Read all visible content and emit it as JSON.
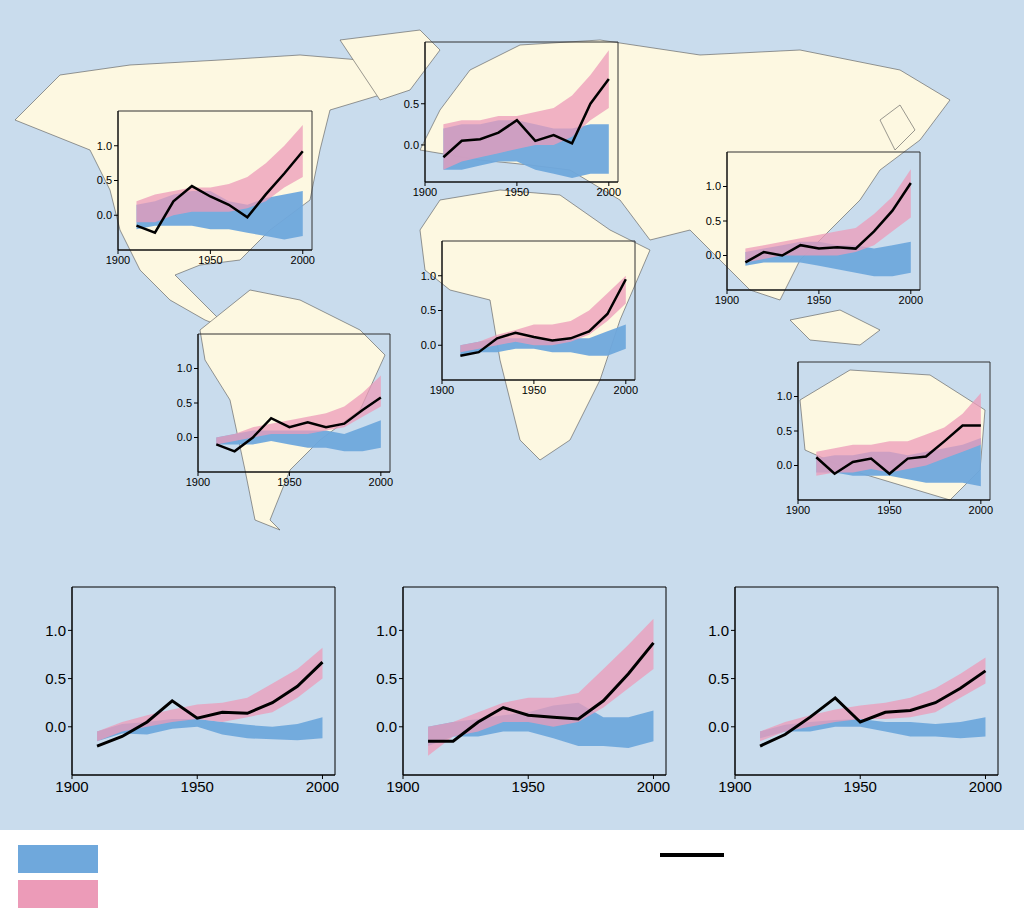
{
  "chart_data": [
    {
      "type": "line",
      "x": [
        1910,
        1920,
        1930,
        1940,
        1950,
        1960,
        1970,
        1980,
        1990,
        2000
      ],
      "xlim": [
        1900,
        2005
      ],
      "xticks": [
        1900,
        1950,
        2000
      ],
      "ylim": [
        -0.5,
        1.5
      ],
      "yticks": [
        {
          "value": 0,
          "label": "0.0"
        },
        {
          "value": 0.5,
          "label": "0.5"
        },
        {
          "value": 1,
          "label": "1.0"
        }
      ],
      "series": [
        {
          "type": "band",
          "color": "#6fa8dc",
          "low": [
            -0.2,
            -0.15,
            -0.15,
            -0.15,
            -0.2,
            -0.2,
            -0.25,
            -0.3,
            -0.35,
            -0.3
          ],
          "high": [
            0.15,
            0.2,
            0.3,
            0.35,
            0.35,
            0.2,
            0.15,
            0.25,
            0.3,
            0.35
          ]
        },
        {
          "type": "band",
          "color": "#ec9bb8",
          "low": [
            -0.1,
            -0.1,
            0.0,
            0.05,
            0.05,
            0.05,
            0.1,
            0.2,
            0.4,
            0.55
          ],
          "high": [
            0.2,
            0.3,
            0.35,
            0.4,
            0.4,
            0.45,
            0.55,
            0.75,
            1.0,
            1.3
          ]
        },
        {
          "type": "line",
          "color": "#000000",
          "values": [
            -0.15,
            -0.25,
            0.2,
            0.42,
            0.27,
            0.15,
            -0.03,
            0.3,
            0.6,
            0.92
          ]
        }
      ]
    },
    {
      "type": "line",
      "x": [
        1910,
        1920,
        1930,
        1940,
        1950,
        1960,
        1970,
        1980,
        1990,
        2000
      ],
      "xlim": [
        1900,
        2005
      ],
      "xticks": [
        1900,
        1950,
        2000
      ],
      "ylim": [
        -0.45,
        1.25
      ],
      "yticks": [
        {
          "value": 0,
          "label": "0.0"
        },
        {
          "value": 0.5,
          "label": "0.5"
        }
      ],
      "series": [
        {
          "type": "band",
          "color": "#6fa8dc",
          "low": [
            -0.3,
            -0.3,
            -0.25,
            -0.2,
            -0.2,
            -0.3,
            -0.35,
            -0.4,
            -0.35,
            -0.35
          ],
          "high": [
            0.2,
            0.25,
            0.25,
            0.3,
            0.3,
            0.25,
            0.2,
            0.2,
            0.25,
            0.25
          ]
        },
        {
          "type": "band",
          "color": "#ec9bb8",
          "low": [
            -0.3,
            -0.2,
            -0.15,
            -0.1,
            -0.05,
            0.0,
            0.0,
            0.1,
            0.3,
            0.45
          ],
          "high": [
            0.25,
            0.3,
            0.3,
            0.35,
            0.35,
            0.4,
            0.45,
            0.6,
            0.85,
            1.15
          ]
        },
        {
          "type": "line",
          "color": "#000000",
          "values": [
            -0.15,
            0.05,
            0.07,
            0.15,
            0.3,
            0.05,
            0.12,
            0.02,
            0.5,
            0.8
          ]
        }
      ]
    },
    {
      "type": "line",
      "x": [
        1910,
        1920,
        1930,
        1940,
        1950,
        1960,
        1970,
        1980,
        1990,
        2000
      ],
      "xlim": [
        1900,
        2005
      ],
      "xticks": [
        1900,
        1950,
        2000
      ],
      "ylim": [
        -0.5,
        1.5
      ],
      "yticks": [
        {
          "value": 0,
          "label": "0.0"
        },
        {
          "value": 0.5,
          "label": "0.5"
        },
        {
          "value": 1,
          "label": "1.0"
        }
      ],
      "series": [
        {
          "type": "band",
          "color": "#6fa8dc",
          "low": [
            -0.15,
            -0.1,
            -0.1,
            -0.1,
            -0.15,
            -0.2,
            -0.25,
            -0.3,
            -0.3,
            -0.25
          ],
          "high": [
            0.05,
            0.1,
            0.15,
            0.2,
            0.2,
            0.15,
            0.15,
            0.1,
            0.15,
            0.2
          ]
        },
        {
          "type": "band",
          "color": "#ec9bb8",
          "low": [
            -0.1,
            -0.05,
            0.0,
            0.0,
            0.0,
            0.0,
            0.05,
            0.15,
            0.35,
            0.55
          ],
          "high": [
            0.1,
            0.15,
            0.2,
            0.25,
            0.3,
            0.35,
            0.4,
            0.6,
            0.85,
            1.25
          ]
        },
        {
          "type": "line",
          "color": "#000000",
          "values": [
            -0.1,
            0.05,
            0.0,
            0.15,
            0.1,
            0.12,
            0.1,
            0.35,
            0.65,
            1.05
          ]
        }
      ]
    },
    {
      "type": "line",
      "x": [
        1910,
        1920,
        1930,
        1940,
        1950,
        1960,
        1970,
        1980,
        1990,
        2000
      ],
      "xlim": [
        1900,
        2005
      ],
      "xticks": [
        1900,
        1950,
        2000
      ],
      "ylim": [
        -0.5,
        1.5
      ],
      "yticks": [
        {
          "value": 0,
          "label": "0.0"
        },
        {
          "value": 0.5,
          "label": "0.5"
        },
        {
          "value": 1,
          "label": "1.0"
        }
      ],
      "series": [
        {
          "type": "band",
          "color": "#6fa8dc",
          "low": [
            -0.15,
            -0.1,
            -0.1,
            -0.05,
            -0.05,
            -0.1,
            -0.1,
            -0.15,
            -0.15,
            -0.05
          ],
          "high": [
            0.0,
            0.05,
            0.1,
            0.1,
            0.1,
            0.05,
            0.1,
            0.1,
            0.2,
            0.3
          ]
        },
        {
          "type": "band",
          "color": "#ec9bb8",
          "low": [
            -0.1,
            -0.05,
            0.0,
            0.05,
            0.0,
            0.0,
            0.05,
            0.15,
            0.35,
            0.6
          ],
          "high": [
            0.0,
            0.05,
            0.15,
            0.22,
            0.3,
            0.3,
            0.35,
            0.5,
            0.75,
            1.0
          ]
        },
        {
          "type": "line",
          "color": "#000000",
          "values": [
            -0.15,
            -0.1,
            0.1,
            0.18,
            0.12,
            0.07,
            0.1,
            0.2,
            0.45,
            0.95
          ]
        }
      ]
    },
    {
      "type": "line",
      "x": [
        1910,
        1920,
        1930,
        1940,
        1950,
        1960,
        1970,
        1980,
        1990,
        2000
      ],
      "xlim": [
        1900,
        2005
      ],
      "xticks": [
        1900,
        1950,
        2000
      ],
      "ylim": [
        -0.5,
        1.5
      ],
      "yticks": [
        {
          "value": 0,
          "label": "0.0"
        },
        {
          "value": 0.5,
          "label": "0.5"
        },
        {
          "value": 1,
          "label": "1.0"
        }
      ],
      "series": [
        {
          "type": "band",
          "color": "#6fa8dc",
          "low": [
            -0.1,
            -0.1,
            -0.1,
            -0.05,
            -0.1,
            -0.15,
            -0.15,
            -0.2,
            -0.2,
            -0.15
          ],
          "high": [
            0.0,
            0.05,
            0.1,
            0.1,
            0.1,
            0.1,
            0.1,
            0.05,
            0.15,
            0.25
          ]
        },
        {
          "type": "band",
          "color": "#ec9bb8",
          "low": [
            -0.1,
            -0.05,
            0.0,
            0.05,
            0.05,
            0.05,
            0.1,
            0.15,
            0.3,
            0.45
          ],
          "high": [
            0.0,
            0.05,
            0.15,
            0.2,
            0.25,
            0.3,
            0.35,
            0.45,
            0.65,
            0.9
          ]
        },
        {
          "type": "line",
          "color": "#000000",
          "values": [
            -0.1,
            -0.2,
            0.0,
            0.28,
            0.15,
            0.22,
            0.15,
            0.2,
            0.4,
            0.58
          ]
        }
      ]
    },
    {
      "type": "line",
      "x": [
        1910,
        1920,
        1930,
        1940,
        1950,
        1960,
        1970,
        1980,
        1990,
        2000
      ],
      "xlim": [
        1900,
        2005
      ],
      "xticks": [
        1900,
        1950,
        2000
      ],
      "ylim": [
        -0.5,
        1.5
      ],
      "yticks": [
        {
          "value": 0,
          "label": "0.0"
        },
        {
          "value": 0.5,
          "label": "0.5"
        },
        {
          "value": 1,
          "label": "1.0"
        }
      ],
      "series": [
        {
          "type": "band",
          "color": "#6fa8dc",
          "low": [
            -0.1,
            -0.1,
            -0.15,
            -0.15,
            -0.15,
            -0.2,
            -0.25,
            -0.25,
            -0.25,
            -0.3
          ],
          "high": [
            0.1,
            0.15,
            0.15,
            0.2,
            0.2,
            0.15,
            0.2,
            0.25,
            0.3,
            0.4
          ]
        },
        {
          "type": "band",
          "color": "#ec9bb8",
          "low": [
            -0.15,
            -0.1,
            -0.1,
            -0.05,
            -0.1,
            -0.05,
            0.0,
            0.1,
            0.2,
            0.3
          ],
          "high": [
            0.2,
            0.25,
            0.3,
            0.3,
            0.35,
            0.35,
            0.45,
            0.55,
            0.75,
            1.05
          ]
        },
        {
          "type": "line",
          "color": "#000000",
          "values": [
            0.12,
            -0.12,
            0.05,
            0.1,
            -0.12,
            0.1,
            0.13,
            0.35,
            0.58,
            0.58
          ]
        }
      ]
    },
    {
      "type": "line",
      "legend": "bottom",
      "x": [
        1910,
        1920,
        1930,
        1940,
        1950,
        1960,
        1970,
        1980,
        1990,
        2000
      ],
      "xlim": [
        1900,
        2005
      ],
      "xticks": [
        1900,
        1950,
        2000
      ],
      "ylim": [
        -0.5,
        1.45
      ],
      "yticks": [
        {
          "value": 0,
          "label": "0.0"
        },
        {
          "value": 0.5,
          "label": "0.5"
        },
        {
          "value": 1,
          "label": "1.0"
        }
      ],
      "series": [
        {
          "type": "band",
          "color": "#6fa8dc",
          "low": [
            -0.15,
            -0.07,
            -0.08,
            -0.02,
            0.0,
            -0.08,
            -0.12,
            -0.13,
            -0.14,
            -0.12
          ],
          "high": [
            -0.05,
            0.03,
            0.05,
            0.08,
            0.08,
            0.05,
            0.02,
            0.0,
            0.03,
            0.1
          ]
        },
        {
          "type": "band",
          "color": "#ec9bb8",
          "low": [
            -0.15,
            -0.05,
            0.0,
            0.05,
            0.08,
            0.05,
            0.1,
            0.15,
            0.3,
            0.5
          ],
          "high": [
            -0.05,
            0.05,
            0.12,
            0.18,
            0.23,
            0.25,
            0.3,
            0.45,
            0.6,
            0.82
          ]
        },
        {
          "type": "line",
          "color": "#000000",
          "values": [
            -0.2,
            -0.1,
            0.05,
            0.27,
            0.09,
            0.15,
            0.14,
            0.25,
            0.42,
            0.67
          ]
        }
      ]
    },
    {
      "type": "line",
      "x": [
        1910,
        1920,
        1930,
        1940,
        1950,
        1960,
        1970,
        1980,
        1990,
        2000
      ],
      "xlim": [
        1900,
        2005
      ],
      "xticks": [
        1900,
        1950,
        2000
      ],
      "ylim": [
        -0.5,
        1.45
      ],
      "yticks": [
        {
          "value": 0,
          "label": "0.0"
        },
        {
          "value": 0.5,
          "label": "0.5"
        },
        {
          "value": 1,
          "label": "1.0"
        }
      ],
      "series": [
        {
          "type": "band",
          "color": "#6fa8dc",
          "low": [
            -0.2,
            -0.1,
            -0.1,
            -0.05,
            -0.05,
            -0.12,
            -0.2,
            -0.2,
            -0.22,
            -0.15
          ],
          "high": [
            0.0,
            0.05,
            0.08,
            0.12,
            0.15,
            0.22,
            0.25,
            0.1,
            0.1,
            0.17
          ]
        },
        {
          "type": "band",
          "color": "#ec9bb8",
          "low": [
            -0.3,
            -0.1,
            -0.05,
            0.05,
            0.05,
            0.0,
            0.05,
            0.2,
            0.4,
            0.6
          ],
          "high": [
            0.0,
            0.05,
            0.15,
            0.25,
            0.3,
            0.3,
            0.35,
            0.6,
            0.85,
            1.12
          ]
        },
        {
          "type": "line",
          "color": "#000000",
          "values": [
            -0.15,
            -0.15,
            0.05,
            0.2,
            0.12,
            0.1,
            0.08,
            0.27,
            0.55,
            0.87
          ]
        }
      ]
    },
    {
      "type": "line",
      "x": [
        1910,
        1920,
        1930,
        1940,
        1950,
        1960,
        1970,
        1980,
        1990,
        2000
      ],
      "xlim": [
        1900,
        2005
      ],
      "xticks": [
        1900,
        1950,
        2000
      ],
      "ylim": [
        -0.5,
        1.45
      ],
      "yticks": [
        {
          "value": 0,
          "label": "0.0"
        },
        {
          "value": 0.5,
          "label": "0.5"
        },
        {
          "value": 1,
          "label": "1.0"
        }
      ],
      "series": [
        {
          "type": "band",
          "color": "#6fa8dc",
          "low": [
            -0.12,
            -0.05,
            -0.05,
            0.0,
            0.0,
            -0.05,
            -0.1,
            -0.1,
            -0.12,
            -0.1
          ],
          "high": [
            -0.05,
            0.02,
            0.05,
            0.07,
            0.08,
            0.05,
            0.05,
            0.03,
            0.05,
            0.1
          ]
        },
        {
          "type": "band",
          "color": "#ec9bb8",
          "low": [
            -0.15,
            -0.05,
            0.0,
            0.05,
            0.08,
            0.08,
            0.1,
            0.15,
            0.3,
            0.45
          ],
          "high": [
            -0.05,
            0.05,
            0.12,
            0.18,
            0.22,
            0.25,
            0.3,
            0.4,
            0.55,
            0.72
          ]
        },
        {
          "type": "line",
          "color": "#000000",
          "values": [
            -0.2,
            -0.08,
            0.1,
            0.3,
            0.05,
            0.15,
            0.17,
            0.25,
            0.4,
            0.58
          ]
        }
      ]
    }
  ]
}
